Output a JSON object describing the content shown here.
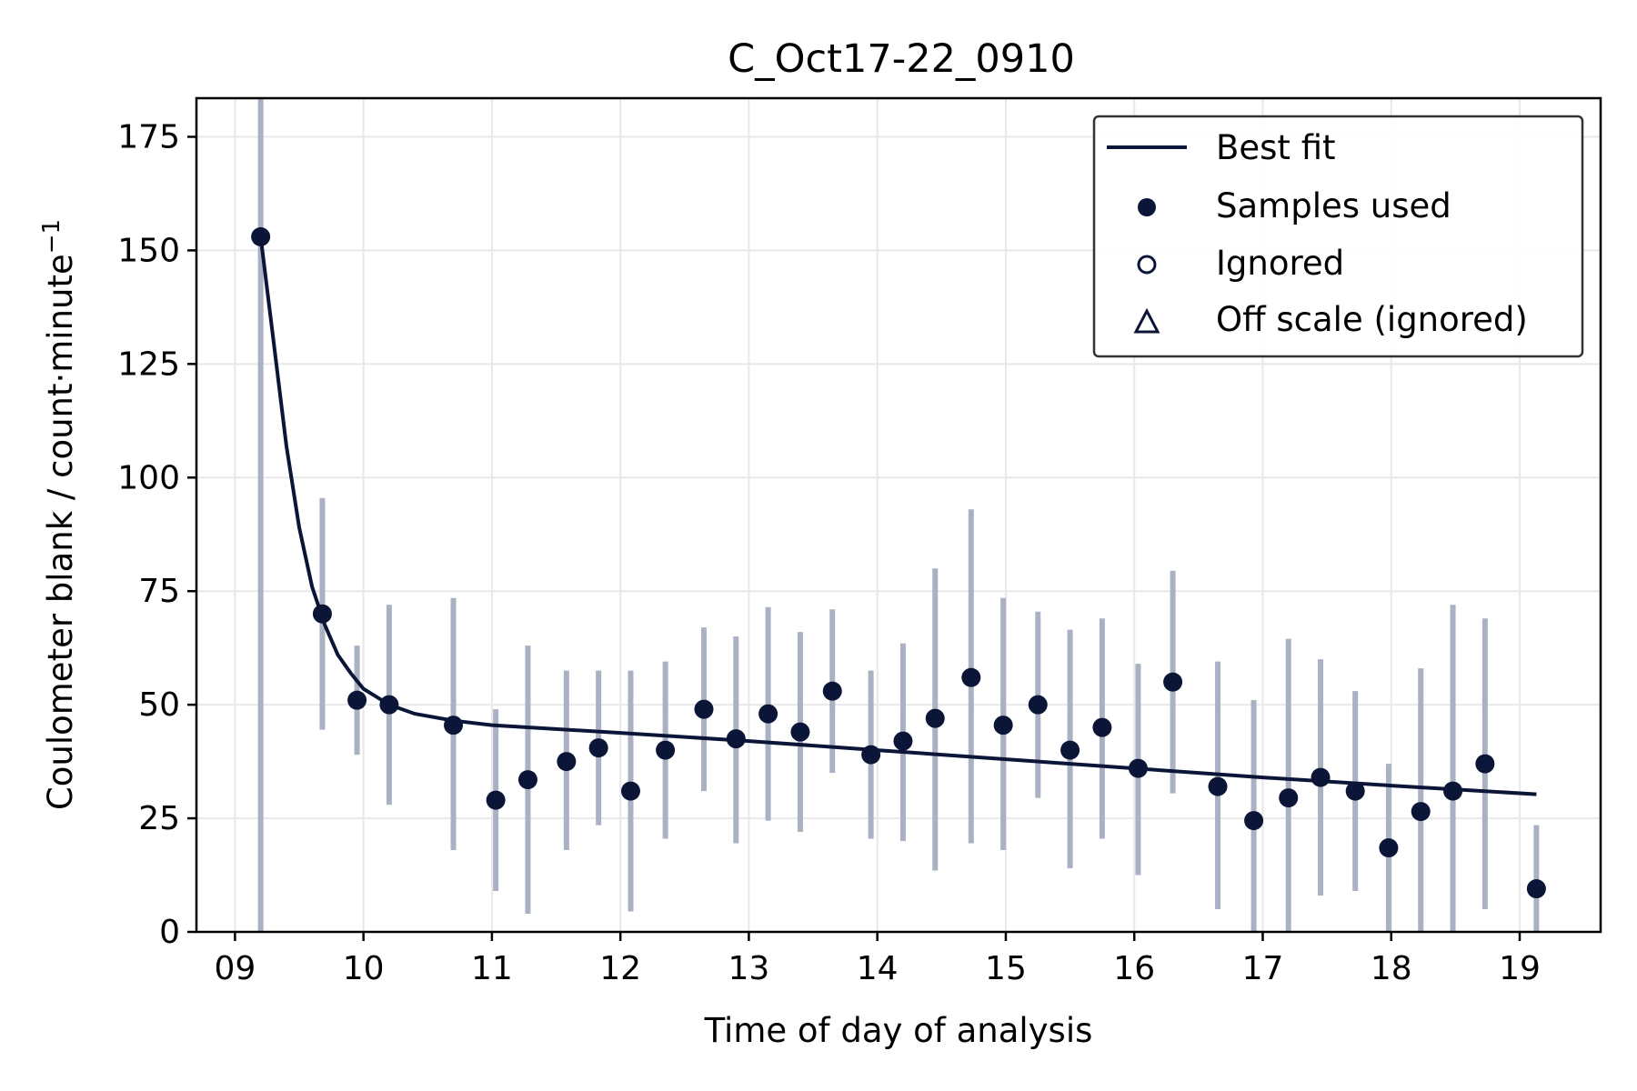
{
  "chart_data": {
    "type": "scatter",
    "title": "C_Oct17-22_0910",
    "xlabel": "Time of day of analysis",
    "ylabel": "Coulometer blank / count·minute",
    "ylabel_superscript": "−1",
    "xlim": [
      8.7,
      19.63
    ],
    "ylim": [
      0,
      183.5
    ],
    "xticks": [
      9,
      10,
      11,
      12,
      13,
      14,
      15,
      16,
      17,
      18,
      19
    ],
    "xtick_labels": [
      "09",
      "10",
      "11",
      "12",
      "13",
      "14",
      "15",
      "16",
      "17",
      "18",
      "19"
    ],
    "yticks": [
      0,
      25,
      50,
      75,
      100,
      125,
      150,
      175
    ],
    "ytick_labels": [
      "0",
      "25",
      "50",
      "75",
      "100",
      "125",
      "150",
      "175"
    ],
    "grid": true,
    "legend_position": "top-right",
    "legend": {
      "best_fit": "Best fit",
      "samples_used": "Samples used",
      "ignored": "Ignored",
      "off_scale": "Off scale (ignored)"
    },
    "colors": {
      "marker": "#0b1538",
      "fit_line": "#0b1538",
      "error_bar": "#aab1c2",
      "grid": "#e8e8e8"
    },
    "samples_used": [
      {
        "x": 9.2,
        "y": 153,
        "ylo": 0,
        "yhi": 183.5
      },
      {
        "x": 9.68,
        "y": 70,
        "ylo": 44.5,
        "yhi": 95.5
      },
      {
        "x": 9.95,
        "y": 51,
        "ylo": 39,
        "yhi": 63
      },
      {
        "x": 10.2,
        "y": 50,
        "ylo": 28,
        "yhi": 72
      },
      {
        "x": 10.7,
        "y": 45.5,
        "ylo": 18,
        "yhi": 73.5
      },
      {
        "x": 11.03,
        "y": 29,
        "ylo": 9,
        "yhi": 49
      },
      {
        "x": 11.28,
        "y": 33.5,
        "ylo": 4,
        "yhi": 63
      },
      {
        "x": 11.58,
        "y": 37.5,
        "ylo": 18,
        "yhi": 57.5
      },
      {
        "x": 11.83,
        "y": 40.5,
        "ylo": 23.5,
        "yhi": 57.5
      },
      {
        "x": 12.08,
        "y": 31,
        "ylo": 4.5,
        "yhi": 57.5
      },
      {
        "x": 12.35,
        "y": 40,
        "ylo": 20.5,
        "yhi": 59.5
      },
      {
        "x": 12.65,
        "y": 49,
        "ylo": 31,
        "yhi": 67
      },
      {
        "x": 12.9,
        "y": 42.5,
        "ylo": 19.5,
        "yhi": 65
      },
      {
        "x": 13.15,
        "y": 48,
        "ylo": 24.5,
        "yhi": 71.5
      },
      {
        "x": 13.4,
        "y": 44,
        "ylo": 22,
        "yhi": 66
      },
      {
        "x": 13.65,
        "y": 53,
        "ylo": 35,
        "yhi": 71
      },
      {
        "x": 13.95,
        "y": 39,
        "ylo": 20.5,
        "yhi": 57.5
      },
      {
        "x": 14.2,
        "y": 42,
        "ylo": 20,
        "yhi": 63.5
      },
      {
        "x": 14.45,
        "y": 47,
        "ylo": 13.5,
        "yhi": 80
      },
      {
        "x": 14.73,
        "y": 56,
        "ylo": 19.5,
        "yhi": 93
      },
      {
        "x": 14.98,
        "y": 45.5,
        "ylo": 18,
        "yhi": 73.5
      },
      {
        "x": 15.25,
        "y": 50,
        "ylo": 29.5,
        "yhi": 70.5
      },
      {
        "x": 15.5,
        "y": 40,
        "ylo": 14,
        "yhi": 66.5
      },
      {
        "x": 15.75,
        "y": 45,
        "ylo": 20.5,
        "yhi": 69
      },
      {
        "x": 16.03,
        "y": 36,
        "ylo": 12.5,
        "yhi": 59
      },
      {
        "x": 16.3,
        "y": 55,
        "ylo": 30.5,
        "yhi": 79.5
      },
      {
        "x": 16.65,
        "y": 32,
        "ylo": 5,
        "yhi": 59.5
      },
      {
        "x": 16.93,
        "y": 24.5,
        "ylo": 0,
        "yhi": 51
      },
      {
        "x": 17.2,
        "y": 29.5,
        "ylo": 0,
        "yhi": 64.5
      },
      {
        "x": 17.45,
        "y": 34,
        "ylo": 8,
        "yhi": 60
      },
      {
        "x": 17.72,
        "y": 31,
        "ylo": 9,
        "yhi": 53
      },
      {
        "x": 17.98,
        "y": 18.5,
        "ylo": 0,
        "yhi": 37
      },
      {
        "x": 18.23,
        "y": 26.5,
        "ylo": 0,
        "yhi": 58
      },
      {
        "x": 18.48,
        "y": 31,
        "ylo": 0,
        "yhi": 72
      },
      {
        "x": 18.73,
        "y": 37,
        "ylo": 5,
        "yhi": 69
      },
      {
        "x": 19.13,
        "y": 9.5,
        "ylo": 0,
        "yhi": 23.5
      }
    ],
    "best_fit": [
      {
        "x": 9.2,
        "y": 153
      },
      {
        "x": 9.3,
        "y": 130
      },
      {
        "x": 9.4,
        "y": 107
      },
      {
        "x": 9.5,
        "y": 89
      },
      {
        "x": 9.6,
        "y": 76
      },
      {
        "x": 9.7,
        "y": 67.5
      },
      {
        "x": 9.8,
        "y": 61
      },
      {
        "x": 9.9,
        "y": 57
      },
      {
        "x": 10.0,
        "y": 53.5
      },
      {
        "x": 10.2,
        "y": 50
      },
      {
        "x": 10.4,
        "y": 48
      },
      {
        "x": 10.7,
        "y": 46.5
      },
      {
        "x": 11.0,
        "y": 45.5
      },
      {
        "x": 12.0,
        "y": 43.8
      },
      {
        "x": 13.0,
        "y": 42
      },
      {
        "x": 14.0,
        "y": 40
      },
      {
        "x": 15.0,
        "y": 38
      },
      {
        "x": 16.0,
        "y": 36
      },
      {
        "x": 17.0,
        "y": 34
      },
      {
        "x": 18.0,
        "y": 32.2
      },
      {
        "x": 19.13,
        "y": 30.3
      }
    ]
  }
}
